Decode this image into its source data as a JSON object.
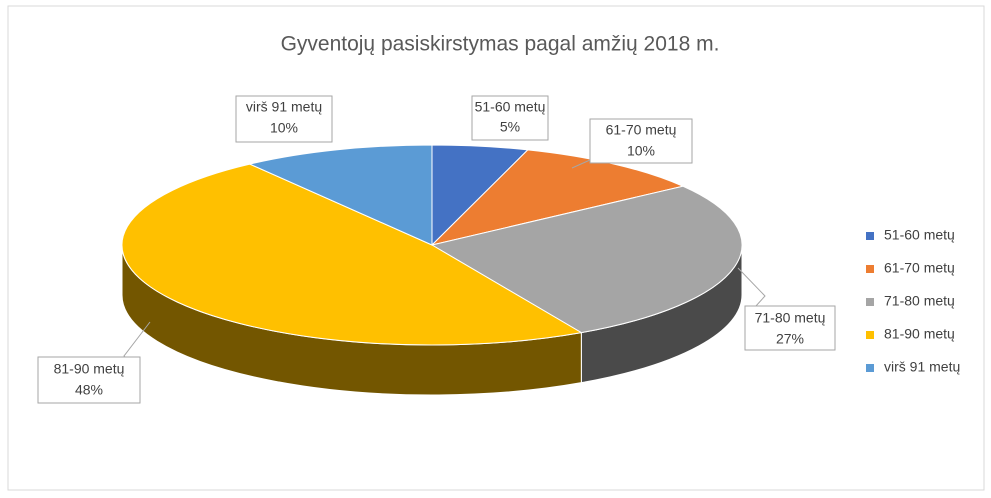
{
  "chart_data": {
    "type": "pie",
    "title": "Gyventojų pasiskirstymas pagal amžių 2018 m.",
    "categories": [
      "51-60 metų",
      "61-70 metų",
      "71-80 metų",
      "81-90 metų",
      "virš 91 metų"
    ],
    "values": [
      5,
      10,
      27,
      48,
      10
    ],
    "value_labels": [
      "5%",
      "10%",
      "27%",
      "48%",
      "10%"
    ],
    "colors": [
      "#4472c4",
      "#ed7d31",
      "#a5a5a5",
      "#ffc000",
      "#5b9bd5"
    ],
    "legend": "right"
  }
}
